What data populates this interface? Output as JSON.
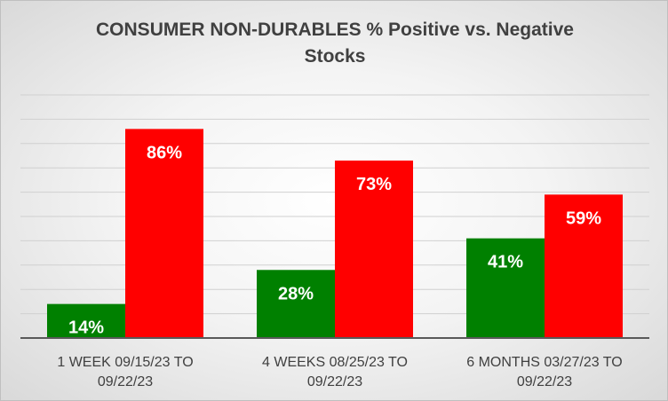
{
  "chart_data": {
    "type": "bar",
    "title_lines": [
      "CONSUMER NON-DURABLES % Positive vs. Negative",
      "Stocks"
    ],
    "categories": [
      [
        "1 WEEK 09/15/23 TO",
        "09/22/23"
      ],
      [
        "4 WEEKS 08/25/23 TO",
        "09/22/23"
      ],
      [
        "6 MONTHS 03/27/23 TO",
        "09/22/23"
      ]
    ],
    "series": [
      {
        "values": [
          14,
          28,
          41
        ],
        "labels": [
          "14%",
          "28%",
          "41%"
        ],
        "color": "#008000"
      },
      {
        "values": [
          86,
          73,
          59
        ],
        "labels": [
          "86%",
          "73%",
          "59%"
        ],
        "color": "#ff0000"
      }
    ],
    "ylim": [
      0,
      100
    ],
    "grid": true,
    "legend": "none"
  }
}
